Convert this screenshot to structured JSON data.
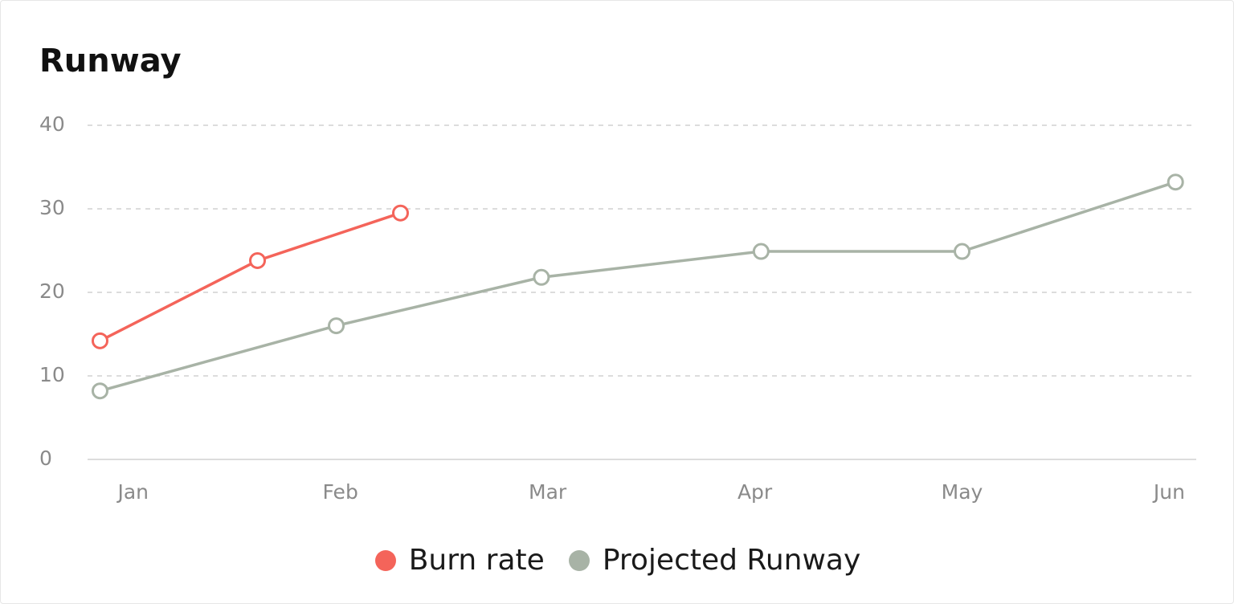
{
  "chart_data": {
    "type": "line",
    "title": "Runway",
    "xlim": [
      -0.22,
      5.13
    ],
    "xticks": [
      {
        "value": 0,
        "label": "Jan"
      },
      {
        "value": 1,
        "label": "Feb"
      },
      {
        "value": 2,
        "label": "Mar"
      },
      {
        "value": 3,
        "label": "Apr"
      },
      {
        "value": 4,
        "label": "May"
      },
      {
        "value": 5,
        "label": "Jun"
      }
    ],
    "ylim": [
      0,
      40
    ],
    "yticks": [
      0,
      10,
      20,
      30,
      40
    ],
    "grid": true,
    "series": [
      {
        "name": "Burn rate",
        "color": "#f4645a",
        "x": [
          -0.16,
          0.6,
          1.29
        ],
        "values": [
          14.2,
          23.8,
          29.5
        ]
      },
      {
        "name": "Projected Runway",
        "color": "#a8b3a6",
        "x": [
          -0.16,
          0.98,
          1.97,
          3.03,
          4.0,
          5.03
        ],
        "values": [
          8.2,
          16.0,
          21.8,
          24.9,
          24.9,
          33.2
        ]
      }
    ]
  }
}
